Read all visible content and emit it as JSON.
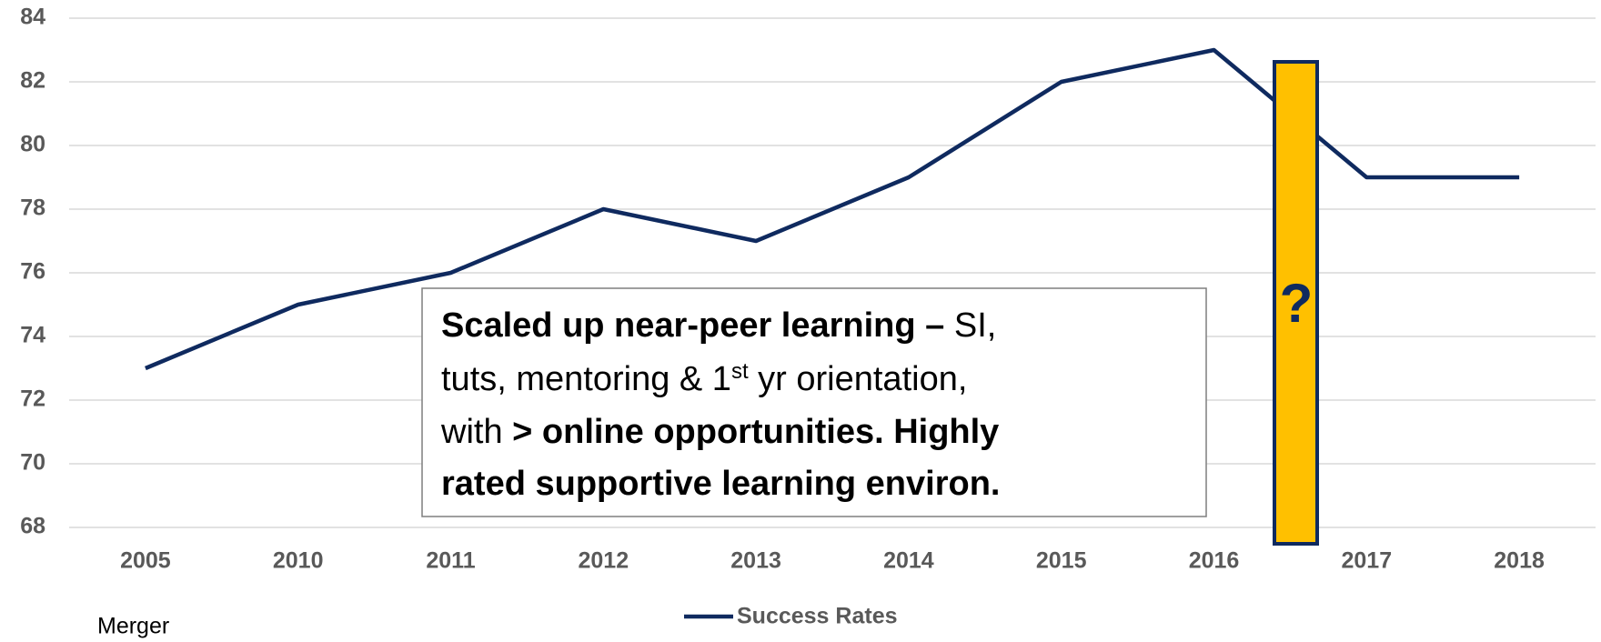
{
  "chart_data": {
    "type": "line",
    "categories": [
      "2005",
      "2010",
      "2011",
      "2012",
      "2013",
      "2014",
      "2015",
      "2016",
      "2017",
      "2018"
    ],
    "series": [
      {
        "name": "Success Rates",
        "color": "#0f2a5f",
        "values": [
          73,
          75,
          76,
          78,
          77,
          79,
          82,
          83,
          79,
          79
        ]
      }
    ],
    "ylim": [
      68,
      84
    ],
    "yticks": [
      68,
      70,
      72,
      74,
      76,
      78,
      80,
      82,
      84
    ],
    "grid": true,
    "legend": "bottom",
    "annotations": {
      "merger": "Merger",
      "marker": "?",
      "marker_color": "#ffc000",
      "callout": [
        [
          {
            "text": "Scaled up near-peer learning – ",
            "bold": true
          },
          {
            "text": "SI,"
          }
        ],
        [
          {
            "text": "tuts, mentoring & 1"
          },
          {
            "text": "st",
            "sup": true
          },
          {
            "text": " yr orientation,"
          }
        ],
        [
          {
            "text": "with "
          },
          {
            "text": "> online opportunities. Highly",
            "bold": true
          }
        ],
        [
          {
            "text": "rated supportive learning environ.",
            "bold": true
          }
        ]
      ]
    }
  }
}
